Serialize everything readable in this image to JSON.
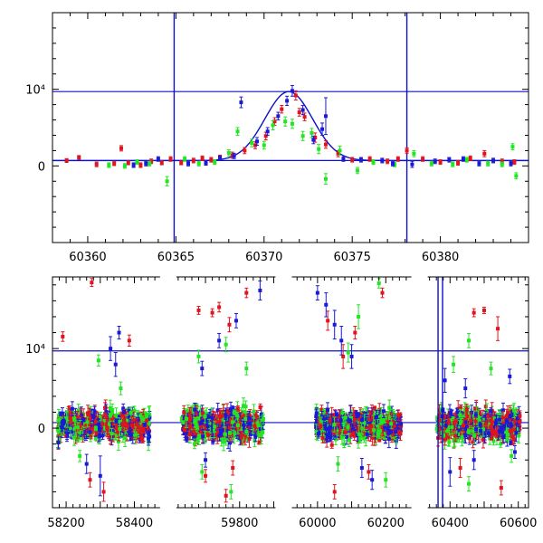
{
  "chart_data": [
    {
      "type": "scatter",
      "panel": "top",
      "xlim": [
        60358,
        60385
      ],
      "ylim": [
        -10000,
        20000
      ],
      "x_ticks": [
        60360,
        60365,
        60370,
        60375,
        60380
      ],
      "y_ticks": [
        {
          "value": 0,
          "label": "0"
        },
        {
          "value": 10000,
          "label": "10⁴"
        }
      ],
      "horizontal_lines": [
        700,
        9700
      ],
      "vertical_lines": [
        60364.9,
        60378.1
      ],
      "fit_curve": {
        "shape": "gaussian",
        "center": 60371.4,
        "sigma": 1.35,
        "baseline": 700,
        "peak": 9700
      },
      "colors": {
        "blue": "#1a1ad6",
        "red": "#e0141e",
        "green": "#22e622",
        "lines": "#1010c8"
      },
      "series": [
        {
          "color": "red",
          "points": [
            [
              60358.8,
              700,
              250
            ],
            [
              60359.5,
              1100,
              250
            ],
            [
              60360.5,
              200,
              300
            ],
            [
              60361.5,
              300,
              250
            ],
            [
              60361.9,
              2300,
              350
            ],
            [
              60362.3,
              400,
              250
            ],
            [
              60363.0,
              100,
              300
            ],
            [
              60363.6,
              600,
              300
            ],
            [
              60364.2,
              400,
              250
            ],
            [
              60364.7,
              900,
              300
            ],
            [
              60365.3,
              400,
              250
            ],
            [
              60366.0,
              700,
              300
            ],
            [
              60366.5,
              1000,
              300
            ],
            [
              60367.0,
              800,
              300
            ],
            [
              60367.5,
              1100,
              300
            ],
            [
              60368.2,
              1400,
              400
            ],
            [
              60368.9,
              2000,
              400
            ],
            [
              60369.5,
              2700,
              450
            ],
            [
              60370.1,
              3900,
              500
            ],
            [
              60370.6,
              5800,
              500
            ],
            [
              60371.0,
              7400,
              500
            ],
            [
              60371.8,
              9200,
              600
            ],
            [
              60372.0,
              7000,
              500
            ],
            [
              60372.3,
              6400,
              500
            ],
            [
              60372.9,
              3700,
              600
            ],
            [
              60373.5,
              2800,
              500
            ],
            [
              60374.2,
              1600,
              400
            ],
            [
              60375.0,
              800,
              300
            ],
            [
              60376.0,
              900,
              300
            ],
            [
              60377.0,
              600,
              300
            ],
            [
              60377.6,
              900,
              300
            ],
            [
              60378.1,
              2000,
              350
            ],
            [
              60379.0,
              900,
              300
            ],
            [
              60380.0,
              500,
              300
            ],
            [
              60381.0,
              400,
              300
            ],
            [
              60381.7,
              1000,
              300
            ],
            [
              60382.5,
              1600,
              400
            ],
            [
              60383.5,
              600,
              300
            ],
            [
              60384.2,
              500,
              300
            ]
          ]
        },
        {
          "color": "green",
          "points": [
            [
              60361.2,
              100,
              300
            ],
            [
              60362.1,
              0,
              300
            ],
            [
              60362.8,
              500,
              300
            ],
            [
              60363.5,
              300,
              300
            ],
            [
              60364.5,
              -2000,
              600
            ],
            [
              60365.5,
              900,
              300
            ],
            [
              60366.3,
              300,
              300
            ],
            [
              60367.2,
              500,
              300
            ],
            [
              60368.0,
              1700,
              400
            ],
            [
              60368.5,
              4500,
              500
            ],
            [
              60369.3,
              3000,
              500
            ],
            [
              60370.0,
              2700,
              500
            ],
            [
              60370.5,
              5300,
              600
            ],
            [
              60371.2,
              5800,
              600
            ],
            [
              60371.6,
              5500,
              600
            ],
            [
              60372.2,
              3900,
              600
            ],
            [
              60372.7,
              4300,
              600
            ],
            [
              60373.1,
              2200,
              600
            ],
            [
              60373.5,
              -1700,
              700
            ],
            [
              60374.3,
              2000,
              600
            ],
            [
              60375.3,
              -600,
              400
            ],
            [
              60376.2,
              500,
              300
            ],
            [
              60377.4,
              200,
              300
            ],
            [
              60378.5,
              1600,
              400
            ],
            [
              60379.5,
              300,
              300
            ],
            [
              60380.7,
              200,
              300
            ],
            [
              60381.5,
              800,
              300
            ],
            [
              60382.7,
              300,
              300
            ],
            [
              60383.5,
              200,
              300
            ],
            [
              60384.1,
              2500,
              400
            ],
            [
              60384.3,
              -1300,
              400
            ]
          ]
        },
        {
          "color": "blue",
          "points": [
            [
              60362.6,
              100,
              300
            ],
            [
              60363.3,
              300,
              300
            ],
            [
              60364.0,
              900,
              300
            ],
            [
              60365.7,
              300,
              300
            ],
            [
              60366.7,
              400,
              300
            ],
            [
              60367.5,
              1000,
              300
            ],
            [
              60368.3,
              1300,
              350
            ],
            [
              60368.7,
              8300,
              700
            ],
            [
              60369.6,
              3200,
              500
            ],
            [
              60370.2,
              4500,
              500
            ],
            [
              60370.8,
              6500,
              500
            ],
            [
              60371.3,
              8500,
              600
            ],
            [
              60371.6,
              9800,
              700
            ],
            [
              60372.2,
              7300,
              600
            ],
            [
              60372.8,
              3400,
              500
            ],
            [
              60373.3,
              4800,
              800
            ],
            [
              60373.5,
              6500,
              2400
            ],
            [
              60374.5,
              900,
              300
            ],
            [
              60375.5,
              800,
              300
            ],
            [
              60376.7,
              700,
              300
            ],
            [
              60377.3,
              300,
              300
            ],
            [
              60378.4,
              200,
              400
            ],
            [
              60379.7,
              600,
              300
            ],
            [
              60380.5,
              800,
              300
            ],
            [
              60381.3,
              900,
              300
            ],
            [
              60382.2,
              300,
              300
            ],
            [
              60383.0,
              700,
              300
            ],
            [
              60384.0,
              300,
              300
            ]
          ]
        }
      ]
    },
    {
      "type": "scatter",
      "panel": "bottom",
      "broken_axis": true,
      "segments": [
        {
          "xlim": [
            58160,
            58470
          ],
          "x_ticks": [
            58200,
            58400
          ]
        },
        {
          "xlim": [
            59620,
            59900
          ],
          "x_ticks": [
            59800
          ]
        },
        {
          "xlim": [
            59930,
            60270
          ],
          "x_ticks": [
            60000,
            60200
          ]
        },
        {
          "xlim": [
            60340,
            60630
          ],
          "x_ticks": [
            60400,
            60600
          ]
        }
      ],
      "ylim": [
        -10000,
        19000
      ],
      "y_ticks": [
        {
          "value": 0,
          "label": "0"
        },
        {
          "value": 10000,
          "label": "10⁴"
        }
      ],
      "horizontal_lines": [
        700,
        9700
      ],
      "vertical_lines": [
        60364.9,
        60378.1
      ],
      "dense_bands": [
        {
          "x_range": [
            58175,
            58445
          ],
          "y_range": [
            -1200,
            2000
          ]
        },
        {
          "x_range": [
            59630,
            59870
          ],
          "y_range": [
            -1200,
            2000
          ]
        },
        {
          "x_range": [
            59995,
            60245
          ],
          "y_range": [
            -1200,
            2000
          ]
        },
        {
          "x_range": [
            60360,
            60605
          ],
          "y_range": [
            -1200,
            2000
          ]
        }
      ],
      "series": [
        {
          "color": "red",
          "points": [
            [
              58190,
              11500,
              600
            ],
            [
              58275,
              18300,
              500
            ],
            [
              58385,
              11000,
              700
            ],
            [
              58270,
              -6500,
              900
            ],
            [
              58310,
              -8000,
              1200
            ],
            [
              59680,
              14800,
              500
            ],
            [
              59720,
              14500,
              500
            ],
            [
              59740,
              15200,
              600
            ],
            [
              59770,
              13000,
              900
            ],
            [
              59820,
              17000,
              600
            ],
            [
              59700,
              -6000,
              800
            ],
            [
              59760,
              -8500,
              800
            ],
            [
              59780,
              -5000,
              900
            ],
            [
              60030,
              13500,
              1200
            ],
            [
              60075,
              9000,
              1500
            ],
            [
              60110,
              12000,
              800
            ],
            [
              60150,
              -5500,
              900
            ],
            [
              60190,
              17000,
              600
            ],
            [
              60050,
              -8000,
              900
            ],
            [
              60470,
              14500,
              500
            ],
            [
              60500,
              14800,
              400
            ],
            [
              60540,
              12500,
              1500
            ],
            [
              60550,
              -7500,
              900
            ],
            [
              60430,
              -5000,
              1200
            ]
          ]
        },
        {
          "color": "green",
          "points": [
            [
              58295,
              8500,
              700
            ],
            [
              58360,
              5000,
              800
            ],
            [
              58240,
              -3500,
              700
            ],
            [
              59680,
              9000,
              800
            ],
            [
              59760,
              10500,
              900
            ],
            [
              59820,
              7500,
              800
            ],
            [
              59690,
              -5500,
              900
            ],
            [
              59775,
              -8000,
              900
            ],
            [
              60090,
              9500,
              1200
            ],
            [
              60120,
              14000,
              1500
            ],
            [
              60180,
              18200,
              600
            ],
            [
              60060,
              -4500,
              900
            ],
            [
              60200,
              -6500,
              900
            ],
            [
              60410,
              8000,
              1000
            ],
            [
              60455,
              11000,
              900
            ],
            [
              60520,
              7500,
              800
            ],
            [
              60455,
              -7000,
              900
            ],
            [
              60580,
              -3500,
              800
            ]
          ]
        },
        {
          "color": "blue",
          "points": [
            [
              58260,
              -4500,
              1200
            ],
            [
              58300,
              -6000,
              2500
            ],
            [
              58330,
              10000,
              1500
            ],
            [
              58345,
              8000,
              1500
            ],
            [
              58355,
              12000,
              800
            ],
            [
              59690,
              7500,
              900
            ],
            [
              59740,
              11000,
              900
            ],
            [
              59790,
              13500,
              900
            ],
            [
              59860,
              17300,
              1200
            ],
            [
              59700,
              -4000,
              900
            ],
            [
              60000,
              17000,
              900
            ],
            [
              60025,
              15500,
              1500
            ],
            [
              60050,
              13000,
              1800
            ],
            [
              60070,
              11000,
              1800
            ],
            [
              60100,
              9000,
              1500
            ],
            [
              60130,
              -5000,
              1200
            ],
            [
              60160,
              -6500,
              1200
            ],
            [
              60385,
              6000,
              1500
            ],
            [
              60400,
              -5500,
              1800
            ],
            [
              60445,
              5000,
              1200
            ],
            [
              60470,
              -4000,
              1200
            ],
            [
              60575,
              6500,
              900
            ],
            [
              60590,
              -3000,
              800
            ]
          ]
        }
      ]
    }
  ]
}
